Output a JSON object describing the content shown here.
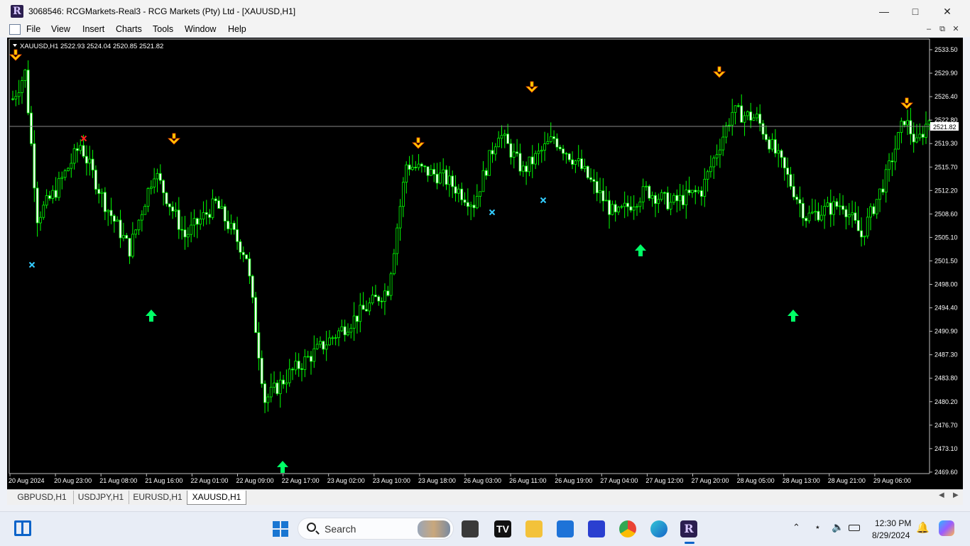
{
  "window": {
    "title": "3068546: RCGMarkets-Real3 - RCG Markets (Pty) Ltd - [XAUUSD,H1]",
    "app_letter": "R"
  },
  "menu": [
    "File",
    "View",
    "Insert",
    "Charts",
    "Tools",
    "Window",
    "Help"
  ],
  "chart": {
    "header": "XAUUSD,H1  2522.93 2524.04 2520.85 2521.82",
    "current_price": "2521.82",
    "price_levels": [
      "2533.50",
      "2529.90",
      "2526.40",
      "2522.80",
      "2519.30",
      "2515.70",
      "2512.20",
      "2508.60",
      "2505.10",
      "2501.50",
      "2498.00",
      "2494.40",
      "2490.90",
      "2487.30",
      "2483.80",
      "2480.20",
      "2476.70",
      "2473.10",
      "2469.60"
    ],
    "time_labels": [
      "20 Aug 2024",
      "20 Aug 23:00",
      "21 Aug 08:00",
      "21 Aug 16:00",
      "22 Aug 01:00",
      "22 Aug 09:00",
      "22 Aug 17:00",
      "23 Aug 02:00",
      "23 Aug 10:00",
      "23 Aug 18:00",
      "26 Aug 03:00",
      "26 Aug 11:00",
      "26 Aug 19:00",
      "27 Aug 04:00",
      "27 Aug 12:00",
      "27 Aug 20:00",
      "28 Aug 05:00",
      "28 Aug 13:00",
      "28 Aug 21:00",
      "29 Aug 06:00"
    ],
    "colors": {
      "background": "#000000",
      "candle": "#00ff00",
      "bull_body": "#000000",
      "bear_body": "#ffffff",
      "sell_arrow": "#ffd400",
      "buy_arrow": "#00ff66",
      "cross_red": "#ff2020",
      "cross_cyan": "#33ccff"
    }
  },
  "tabs": [
    "GBPUSD,H1",
    "USDJPY,H1",
    "EURUSD,H1",
    "XAUUSD,H1"
  ],
  "active_tab": "XAUUSD,H1",
  "taskbar": {
    "search_placeholder": "Search",
    "time": "12:30 PM",
    "date": "8/29/2024"
  }
}
